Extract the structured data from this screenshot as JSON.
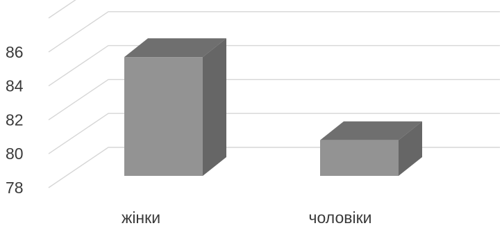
{
  "chart_data": {
    "type": "bar",
    "subtype": "3d-column",
    "categories": [
      "жінки",
      "чоловіки"
    ],
    "values": [
      85.7,
      80.8
    ],
    "ylim": [
      78,
      86
    ],
    "yticks": [
      "78",
      "80",
      "82",
      "84",
      "86"
    ],
    "grid": true,
    "legend": "none",
    "colors": {
      "bar_front": "#939393",
      "bar_top": "#6f6f6f",
      "bar_side": "#666666",
      "grid": "#d6d6d6",
      "text": "#3a3a3a"
    }
  }
}
